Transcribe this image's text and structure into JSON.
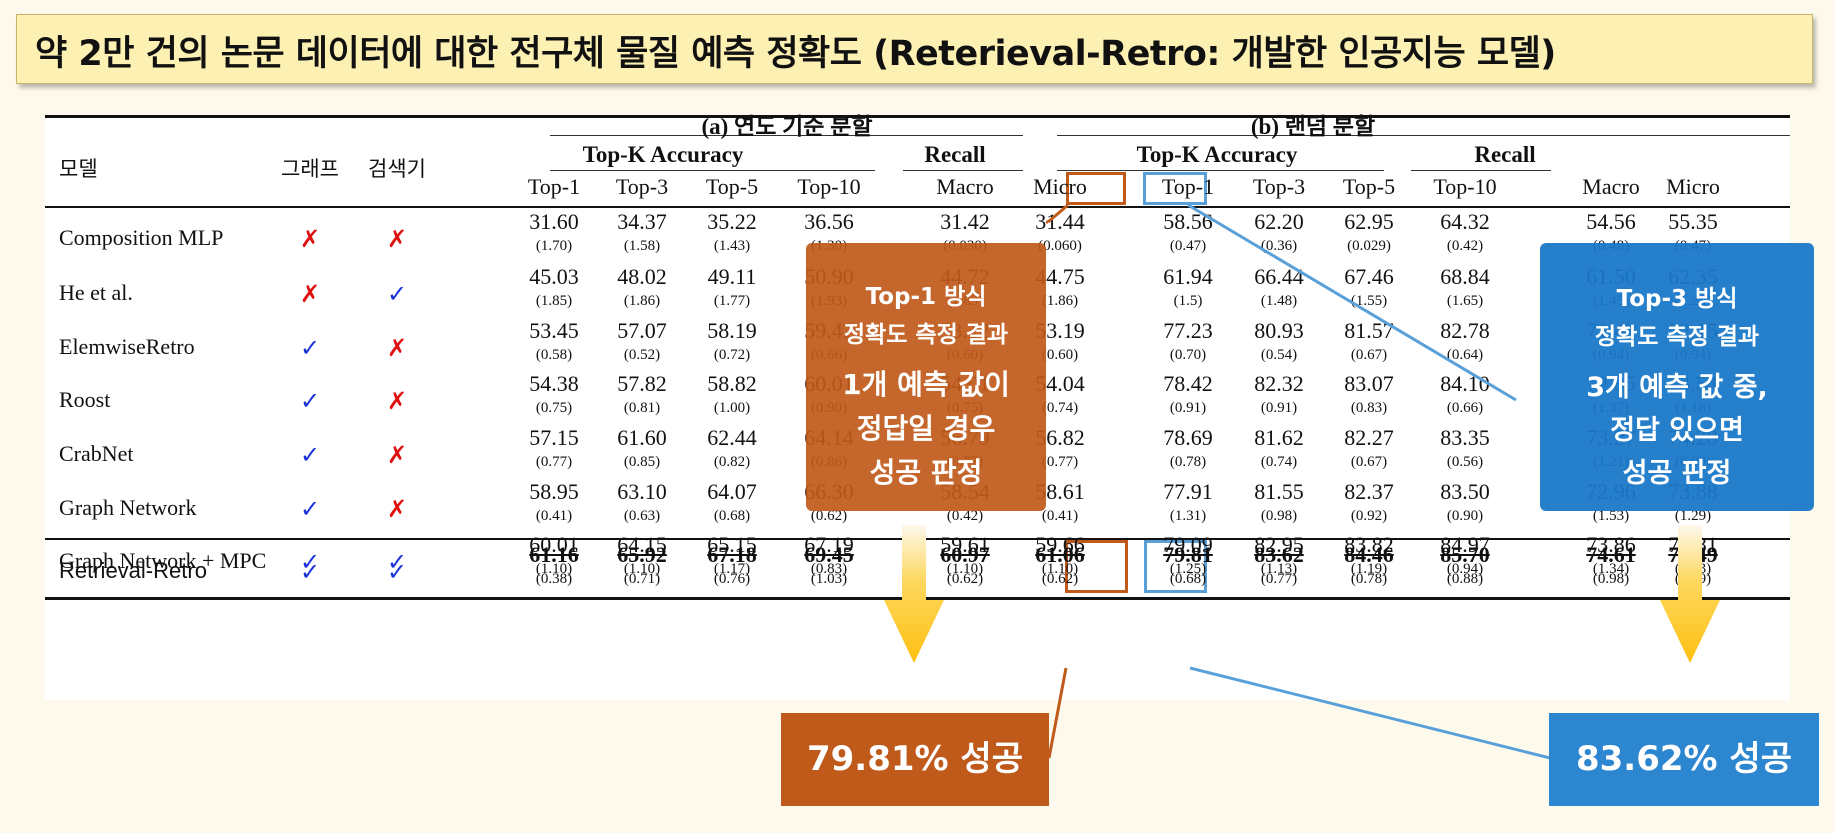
{
  "title": "약 2만 건의 논문 데이터에 대한 전구체 물질 예측 정확도 (Reterieval-Retro: 개발한 인공지능 모델)",
  "table": {
    "col_model": "모델",
    "col_graph": "그래프",
    "col_retriever": "검색기",
    "group_a": "(a) 연도 기준 분할",
    "group_b": "(b) 랜덤 분할",
    "topk": "Top-K Accuracy",
    "recall": "Recall",
    "sub_cols": [
      "Top-1",
      "Top-3",
      "Top-5",
      "Top-10",
      "Macro",
      "Micro",
      "Top-1",
      "Top-3",
      "Top-5",
      "Top-10",
      "Macro",
      "Micro"
    ],
    "rows": [
      {
        "model": "Composition MLP",
        "graph": "x",
        "retriever": "x",
        "vals": [
          "31.60",
          "34.37",
          "35.22",
          "36.56",
          "31.42",
          "31.44",
          "58.56",
          "62.20",
          "62.95",
          "64.32",
          "54.56",
          "55.35"
        ],
        "sds": [
          "(1.70)",
          "(1.58)",
          "(1.43)",
          "(1.30)",
          "(0.030)",
          "(0.060)",
          "(0.47)",
          "(0.36)",
          "(0.029)",
          "(0.42)",
          "(0.48)",
          "(0.47)"
        ]
      },
      {
        "model": "He et al.",
        "graph": "x",
        "retriever": "v",
        "vals": [
          "45.03",
          "48.02",
          "49.11",
          "50.90",
          "44.72",
          "44.75",
          "61.94",
          "66.44",
          "67.46",
          "68.84",
          "61.50",
          "62.35"
        ],
        "sds": [
          "(1.85)",
          "(1.86)",
          "(1.77)",
          "(1.93)",
          "(1.83)",
          "(1.86)",
          "(1.5)",
          "(1.48)",
          "(1.55)",
          "(1.65)",
          "(1.45)",
          "(1.25)"
        ]
      },
      {
        "model": "ElemwiseRetro",
        "graph": "v",
        "retriever": "x",
        "vals": [
          "53.45",
          "57.07",
          "58.19",
          "59.42",
          "53.12",
          "53.19",
          "77.23",
          "80.93",
          "81.57",
          "82.78",
          "71.42",
          "72.15"
        ],
        "sds": [
          "(0.58)",
          "(0.52)",
          "(0.72)",
          "(0.66)",
          "(0.60)",
          "(0.60)",
          "(0.70)",
          "(0.54)",
          "(0.67)",
          "(0.64)",
          "(0.94)",
          "(0.94)"
        ]
      },
      {
        "model": "Roost",
        "graph": "v",
        "retriever": "x",
        "vals": [
          "54.38",
          "57.82",
          "58.82",
          "60.01",
          "54.01",
          "54.04",
          "78.42",
          "82.32",
          "83.07",
          "84.10",
          "72.85",
          "73.54"
        ],
        "sds": [
          "(0.75)",
          "(0.81)",
          "(1.00)",
          "(0.90)",
          "(0.75)",
          "(0.74)",
          "(0.91)",
          "(0.91)",
          "(0.83)",
          "(0.66)",
          "(1.37)",
          "(1.18)"
        ]
      },
      {
        "model": "CrabNet",
        "graph": "v",
        "retriever": "x",
        "vals": [
          "57.15",
          "61.60",
          "62.44",
          "64.14",
          "56.79",
          "56.82",
          "78.69",
          "81.62",
          "82.27",
          "83.35",
          "73.27",
          "74.28"
        ],
        "sds": [
          "(0.77)",
          "(0.85)",
          "(0.82)",
          "(0.86)",
          "(0.77)",
          "(0.77)",
          "(0.78)",
          "(0.74)",
          "(0.67)",
          "(0.56)",
          "(1.21)",
          "(0.99)"
        ]
      },
      {
        "model": "Graph Network",
        "graph": "v",
        "retriever": "x",
        "vals": [
          "58.95",
          "63.10",
          "64.07",
          "66.30",
          "58.54",
          "58.61",
          "77.91",
          "81.55",
          "82.37",
          "83.50",
          "72.96",
          "73.88"
        ],
        "sds": [
          "(0.41)",
          "(0.63)",
          "(0.68)",
          "(0.62)",
          "(0.42)",
          "(0.41)",
          "(1.31)",
          "(0.98)",
          "(0.92)",
          "(0.90)",
          "(1.53)",
          "(1.29)"
        ]
      },
      {
        "model": "Graph Network + MPC",
        "graph": "v",
        "retriever": "v",
        "vals": [
          "60.01",
          "64.15",
          "65.15",
          "67.19",
          "59.61",
          "59.66",
          "79.09",
          "82.95",
          "83.82",
          "84.97",
          "73.86",
          "74.81"
        ],
        "sds": [
          "(1.10)",
          "(1.10)",
          "(1.17)",
          "(0.83)",
          "(1.10)",
          "(1.10)",
          "(1.25)",
          "(1.13)",
          "(1.19)",
          "(0.94)",
          "(1.34)",
          "(1.23)"
        ]
      }
    ],
    "best": {
      "model": "Retrieval-Retro",
      "graph": "v",
      "retriever": "v",
      "vals": [
        "61.16",
        "65.92",
        "67.18",
        "69.45",
        "60.97",
        "61.06",
        "79.81",
        "83.62",
        "84.46",
        "85.70",
        "74.61",
        "75.49"
      ],
      "sds": [
        "(0.38)",
        "(0.71)",
        "(0.76)",
        "(1.03)",
        "(0.62)",
        "(0.62)",
        "(0.68)",
        "(0.77)",
        "(0.78)",
        "(0.88)",
        "(0.98)",
        "(0.89)"
      ]
    }
  },
  "callouts": {
    "top1_title_1": "Top-1 방식",
    "top1_title_2": "정확도 측정 결과",
    "top1_body_1": "1개 예측 값이",
    "top1_body_2": "정답일 경우",
    "top1_body_3": "성공 판정",
    "top3_title_1": "Top-3 방식",
    "top3_title_2": "정확도 측정 결과",
    "top3_body_1": "3개 예측 값 중,",
    "top3_body_2": "정답 있으면",
    "top3_body_3": "성공 판정",
    "top1_result": "79.81% 성공",
    "top3_result": "83.62% 성공"
  },
  "colors": {
    "orange": "#c05a1a",
    "blue": "#1a78c8",
    "light_blue": "#5aa0d8",
    "title_bg": "#fdf0b3",
    "arrow": "#fdc010",
    "cross": "#e01010",
    "check": "#1a32d8"
  },
  "icons": {
    "cross": "cross-mark-icon",
    "check": "check-mark-icon",
    "arrow": "down-arrow-icon"
  }
}
